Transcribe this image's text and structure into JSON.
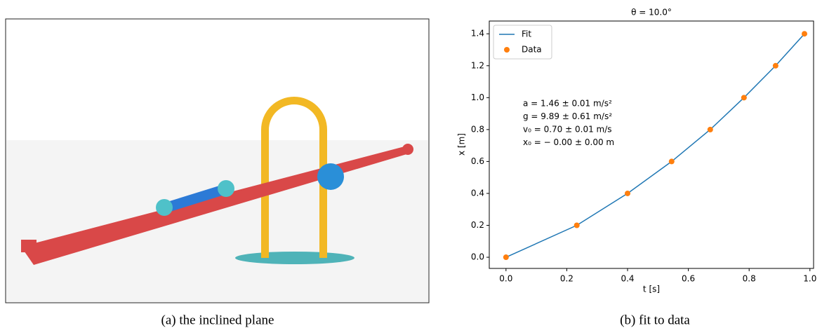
{
  "captions": [
    "(a) the inclined plane",
    "(b) fit to data"
  ],
  "chart_data": {
    "type": "line",
    "title": "θ = 10.0°",
    "x_label": "t [s]",
    "y_label": "x [m]",
    "series": [
      {
        "name": "Fit",
        "color": "#1f77b4",
        "mode": "line",
        "x": [
          0,
          0.233,
          0.4,
          0.545,
          0.672,
          0.783,
          0.887,
          0.982
        ],
        "values": [
          0,
          0.2,
          0.4,
          0.6,
          0.8,
          1.0,
          1.2,
          1.4
        ]
      },
      {
        "name": "Data",
        "color": "#ff7f0e",
        "mode": "markers",
        "x": [
          0,
          0.233,
          0.4,
          0.545,
          0.672,
          0.783,
          0.887,
          0.982
        ],
        "values": [
          0,
          0.2,
          0.4,
          0.6,
          0.8,
          1.0,
          1.2,
          1.4
        ]
      }
    ],
    "annotations": [
      "a = 1.46 ± 0.01 m/s²",
      "g = 9.89 ± 0.61 m/s²",
      "v₀ = 0.70 ± 0.01 m/s",
      "x₀ = − 0.00 ± 0.00 m"
    ],
    "xlim": [
      -0.055,
      1.012
    ],
    "ylim": [
      -0.07,
      1.48
    ],
    "xticks": [
      {
        "value": 0,
        "label": "0.0"
      },
      0.2,
      0.4,
      0.6,
      0.8,
      {
        "value": 1,
        "label": "1.0"
      }
    ],
    "yticks": [
      {
        "value": 0,
        "label": "0.0"
      },
      0.2,
      0.4,
      0.6,
      0.8,
      {
        "value": 1,
        "label": "1.0"
      },
      1.2,
      1.4
    ],
    "legend": "upper left"
  }
}
